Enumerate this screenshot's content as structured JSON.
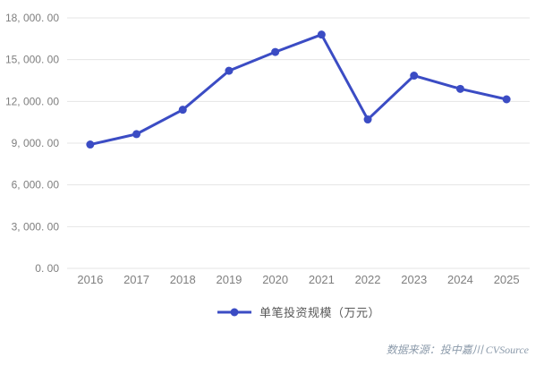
{
  "chart_data": {
    "type": "line",
    "categories": [
      "2016",
      "2017",
      "2018",
      "2019",
      "2020",
      "2021",
      "2022",
      "2023",
      "2024",
      "2025"
    ],
    "series": [
      {
        "name": "单笔投资规模（万元）",
        "values": [
          8900,
          9650,
          11400,
          14200,
          15550,
          16800,
          10700,
          13850,
          12900,
          12150
        ]
      }
    ],
    "title": "",
    "xlabel": "",
    "ylabel": "",
    "ylim": [
      0,
      18000
    ],
    "y_tick_interval": 3000,
    "y_ticks": [
      {
        "value": 18000,
        "label": "18, 000. 00"
      },
      {
        "value": 15000,
        "label": "15, 000. 00"
      },
      {
        "value": 12000,
        "label": "12, 000. 00"
      },
      {
        "value": 9000,
        "label": "9, 000. 00"
      },
      {
        "value": 6000,
        "label": "6, 000. 00"
      },
      {
        "value": 3000,
        "label": "3, 000. 00"
      },
      {
        "value": 0,
        "label": "0. 00"
      }
    ],
    "grid": true,
    "legend_position": "bottom"
  },
  "legend": {
    "label": "单笔投资规模（万元）"
  },
  "source": {
    "text": "数据来源：投中嘉川 CVSource"
  },
  "colors": {
    "line": "#3B4CC4",
    "marker": "#3B4CC4",
    "gridline": "#E4E4E4",
    "axis_label": "#7F7F7F",
    "legend_text": "#595959",
    "source_text": "#8C9BAB",
    "background": "#FFFFFF"
  }
}
